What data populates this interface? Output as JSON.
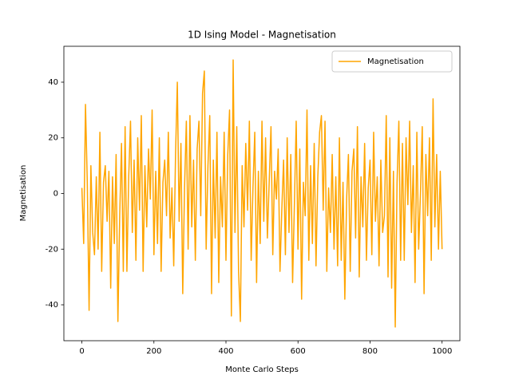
{
  "chart_data": {
    "type": "line",
    "title": "1D Ising Model - Magnetisation",
    "xlabel": "Monte Carlo Steps",
    "ylabel": "Magnetisation",
    "x": [
      0,
      5,
      10,
      15,
      20,
      25,
      30,
      35,
      40,
      45,
      50,
      55,
      60,
      65,
      70,
      75,
      80,
      85,
      90,
      95,
      100,
      105,
      110,
      115,
      120,
      125,
      130,
      135,
      140,
      145,
      150,
      155,
      160,
      165,
      170,
      175,
      180,
      185,
      190,
      195,
      200,
      205,
      210,
      215,
      220,
      225,
      230,
      235,
      240,
      245,
      250,
      255,
      260,
      265,
      270,
      275,
      280,
      285,
      290,
      295,
      300,
      305,
      310,
      315,
      320,
      325,
      330,
      335,
      340,
      345,
      350,
      355,
      360,
      365,
      370,
      375,
      380,
      385,
      390,
      395,
      400,
      405,
      410,
      415,
      420,
      425,
      430,
      435,
      440,
      445,
      450,
      455,
      460,
      465,
      470,
      475,
      480,
      485,
      490,
      495,
      500,
      505,
      510,
      515,
      520,
      525,
      530,
      535,
      540,
      545,
      550,
      555,
      560,
      565,
      570,
      575,
      580,
      585,
      590,
      595,
      600,
      605,
      610,
      615,
      620,
      625,
      630,
      635,
      640,
      645,
      650,
      655,
      660,
      665,
      670,
      675,
      680,
      685,
      690,
      695,
      700,
      705,
      710,
      715,
      720,
      725,
      730,
      735,
      740,
      745,
      750,
      755,
      760,
      765,
      770,
      775,
      780,
      785,
      790,
      795,
      800,
      805,
      810,
      815,
      820,
      825,
      830,
      835,
      840,
      845,
      850,
      855,
      860,
      865,
      870,
      875,
      880,
      885,
      890,
      895,
      900,
      905,
      910,
      915,
      920,
      925,
      930,
      935,
      940,
      945,
      950,
      955,
      960,
      965,
      970,
      975,
      980,
      985,
      990,
      995,
      1000
    ],
    "series": [
      {
        "name": "Magnetisation",
        "color": "#ffa500",
        "values": [
          2,
          -18,
          32,
          4,
          -42,
          10,
          -14,
          -22,
          6,
          -20,
          22,
          -28,
          4,
          10,
          -10,
          8,
          -34,
          6,
          -18,
          14,
          -46,
          -8,
          18,
          -28,
          24,
          -28,
          6,
          26,
          -14,
          12,
          -24,
          20,
          -6,
          28,
          -28,
          10,
          -12,
          16,
          -2,
          30,
          -22,
          8,
          -18,
          20,
          -28,
          4,
          12,
          -8,
          22,
          -16,
          2,
          -26,
          14,
          40,
          -10,
          18,
          -36,
          2,
          26,
          -20,
          28,
          -12,
          12,
          -24,
          16,
          26,
          -8,
          36,
          44,
          -20,
          10,
          28,
          -36,
          12,
          -16,
          22,
          -32,
          6,
          -12,
          22,
          -24,
          14,
          30,
          -44,
          48,
          -14,
          24,
          -28,
          -46,
          10,
          -12,
          18,
          -6,
          26,
          -24,
          2,
          22,
          -32,
          8,
          -18,
          26,
          -10,
          20,
          -16,
          4,
          24,
          -22,
          8,
          -2,
          16,
          -28,
          -6,
          12,
          -22,
          20,
          -14,
          14,
          -32,
          -4,
          26,
          -20,
          16,
          -38,
          4,
          -8,
          30,
          -24,
          10,
          -18,
          18,
          -26,
          6,
          22,
          28,
          -6,
          26,
          -28,
          2,
          -14,
          14,
          -20,
          6,
          -26,
          20,
          -24,
          4,
          -38,
          -2,
          14,
          -28,
          8,
          16,
          -16,
          24,
          -30,
          6,
          -12,
          18,
          -24,
          2,
          12,
          -22,
          22,
          -10,
          6,
          -26,
          12,
          -14,
          -8,
          28,
          -30,
          20,
          -34,
          8,
          -48,
          4,
          26,
          -24,
          18,
          -24,
          20,
          -4,
          26,
          -14,
          10,
          -32,
          22,
          -20,
          0,
          24,
          -36,
          14,
          -8,
          20,
          -24,
          34,
          -12,
          14,
          -20,
          8,
          -20
        ]
      }
    ],
    "xlim": [
      -50,
      1049.5
    ],
    "ylim": [
      -52.9,
      52.9
    ],
    "xticks": [
      0,
      200,
      400,
      600,
      800,
      1000
    ],
    "yticks": [
      -40,
      -20,
      0,
      20,
      40
    ],
    "legend": "upper right"
  }
}
